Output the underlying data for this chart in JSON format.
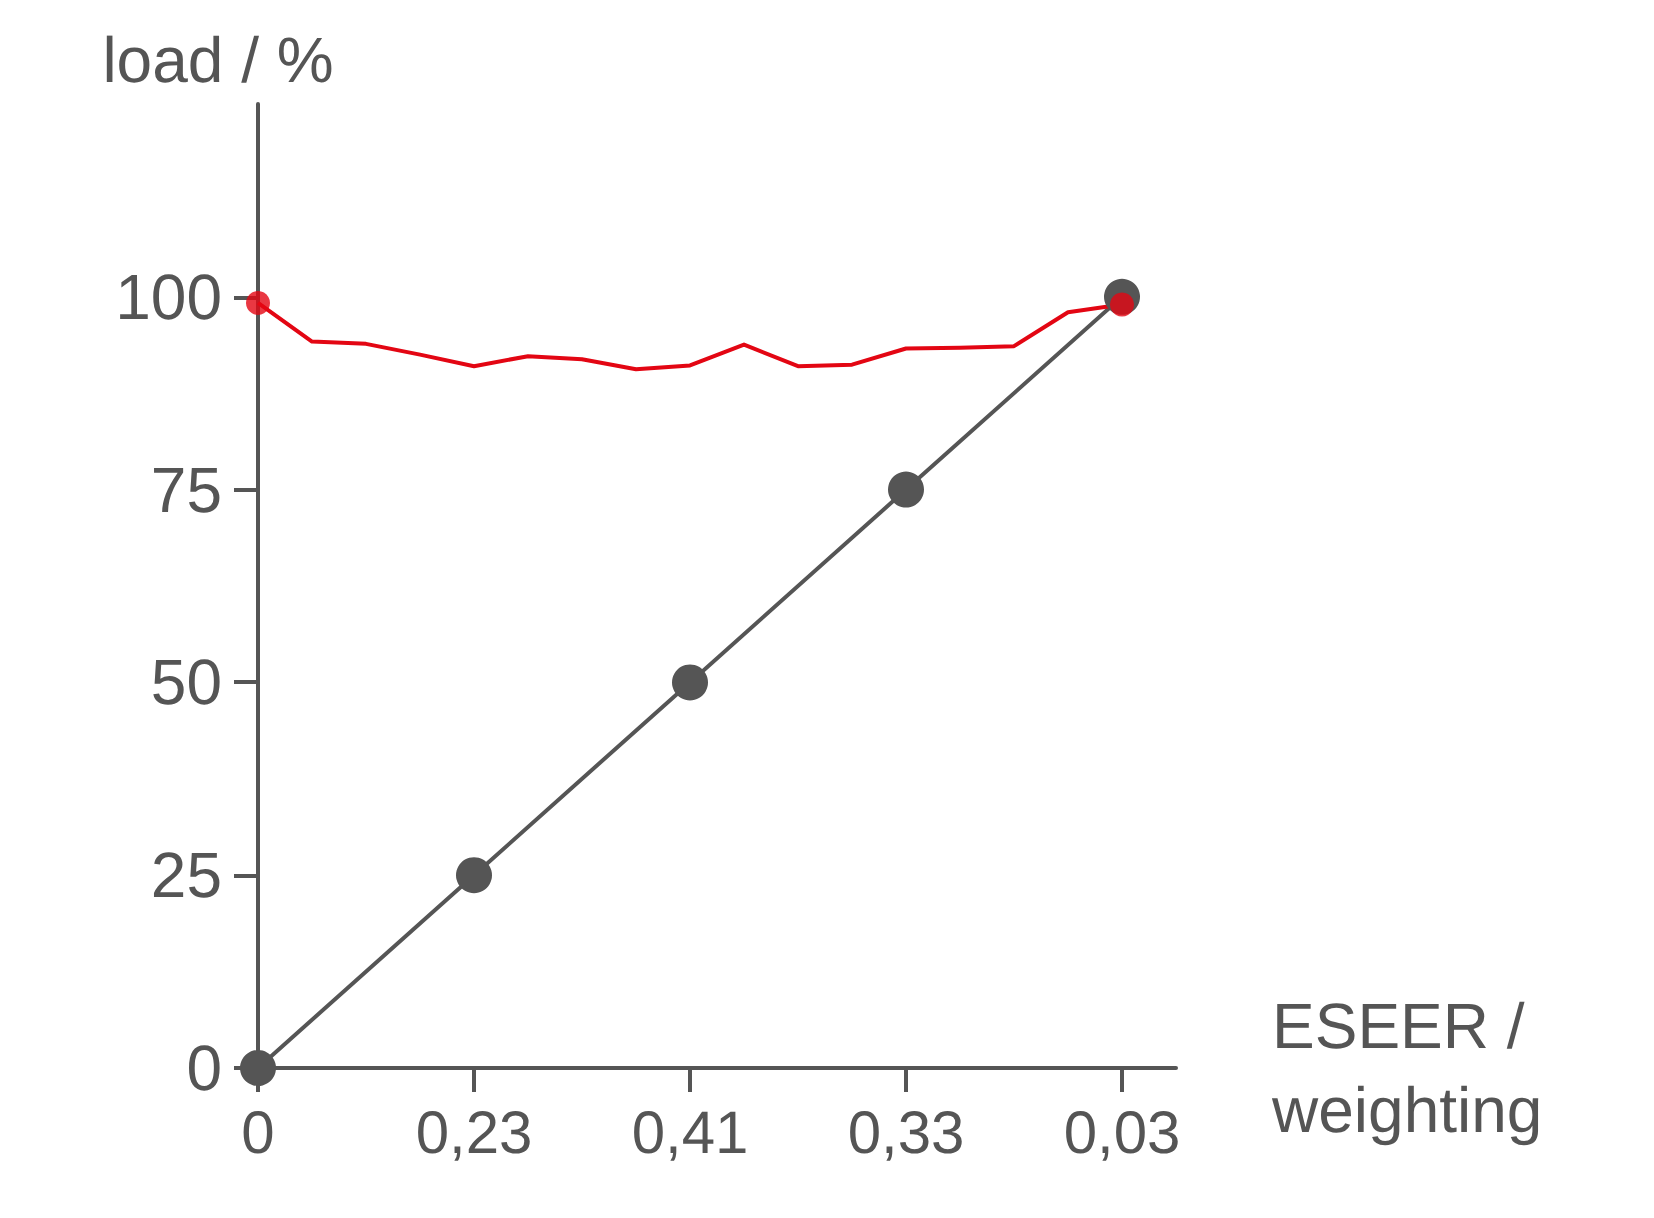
{
  "chart_data": {
    "type": "line",
    "xlabel": "ESEER /\nweighting",
    "ylabel": "load / %",
    "categories": [
      "0",
      null,
      null,
      null,
      "0,23",
      null,
      null,
      null,
      "0,41",
      null,
      null,
      null,
      "0,33",
      null,
      null,
      null,
      "0,03",
      null
    ],
    "ylim": [
      0,
      125
    ],
    "yticks": [
      0,
      25,
      50,
      75,
      100
    ],
    "grid": false,
    "series": [
      {
        "color": "#555555",
        "marker": "circle",
        "values": [
          0,
          null,
          null,
          null,
          25,
          null,
          null,
          null,
          50,
          null,
          null,
          null,
          75,
          null,
          null,
          null,
          100,
          null
        ]
      },
      {
        "color": "#e30613",
        "marker": "none",
        "values": [
          99.2,
          94.2,
          93.9,
          92.5,
          91.0,
          92.3,
          91.9,
          90.6,
          91.1,
          93.8,
          91.0,
          91.2,
          93.3,
          93.4,
          93.6,
          98.0,
          99.0,
          null
        ]
      },
      {
        "type": "scatter",
        "color": "#e30613",
        "marker": "circle",
        "values": [
          99.2,
          null,
          null,
          null,
          null,
          null,
          null,
          null,
          null,
          null,
          null,
          null,
          null,
          null,
          null,
          null,
          99.0,
          null
        ]
      }
    ]
  }
}
